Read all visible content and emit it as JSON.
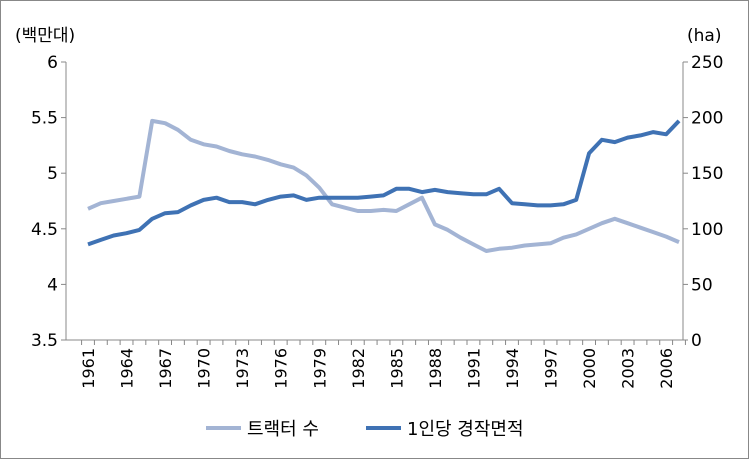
{
  "chart_data": {
    "type": "line",
    "left_unit": "(백만대)",
    "right_unit": "(ha)",
    "x": [
      1961,
      1962,
      1963,
      1964,
      1965,
      1966,
      1967,
      1968,
      1969,
      1970,
      1971,
      1972,
      1973,
      1974,
      1975,
      1976,
      1977,
      1978,
      1979,
      1980,
      1981,
      1982,
      1983,
      1984,
      1985,
      1986,
      1987,
      1988,
      1989,
      1990,
      1991,
      1992,
      1993,
      1994,
      1995,
      1996,
      1997,
      1998,
      1999,
      2000,
      2001,
      2002,
      2003,
      2004,
      2005,
      2006,
      2007
    ],
    "x_tick_labels": [
      "1961",
      "1964",
      "1967",
      "1970",
      "1973",
      "1976",
      "1979",
      "1982",
      "1985",
      "1988",
      "1991",
      "1994",
      "1997",
      "2000",
      "2003",
      "2006"
    ],
    "y_left": {
      "range": [
        3.5,
        6
      ],
      "ticks": [
        "3.5",
        "4",
        "4.5",
        "5",
        "5.5",
        "6"
      ]
    },
    "y_right": {
      "range": [
        0,
        250
      ],
      "ticks": [
        "0",
        "50",
        "100",
        "150",
        "200",
        "250"
      ]
    },
    "legend_position": "bottom",
    "grid": false,
    "series": [
      {
        "name": "트랙터 수",
        "axis": "left",
        "color": "#a3b4d4",
        "values": [
          4.68,
          4.73,
          4.75,
          4.77,
          4.79,
          5.47,
          5.45,
          5.39,
          5.3,
          5.26,
          5.24,
          5.2,
          5.17,
          5.15,
          5.12,
          5.08,
          5.05,
          4.98,
          4.87,
          4.72,
          4.69,
          4.66,
          4.66,
          4.67,
          4.66,
          4.72,
          4.78,
          4.54,
          4.49,
          4.42,
          4.36,
          4.3,
          4.32,
          4.33,
          4.35,
          4.36,
          4.37,
          4.42,
          4.45,
          4.5,
          4.55,
          4.59,
          4.55,
          4.51,
          4.47,
          4.43,
          4.38
        ]
      },
      {
        "name": "1인당 경작면적",
        "axis": "right",
        "color": "#3f72b4",
        "values": [
          86,
          90,
          94,
          96,
          99,
          109,
          114,
          115,
          121,
          126,
          128,
          124,
          124,
          122,
          126,
          129,
          130,
          126,
          128,
          128,
          128,
          128,
          129,
          130,
          136,
          136,
          133,
          135,
          133,
          132,
          131,
          131,
          136,
          123,
          122,
          121,
          121,
          122,
          126,
          168,
          180,
          178,
          182,
          184,
          187,
          185,
          197
        ]
      }
    ]
  }
}
